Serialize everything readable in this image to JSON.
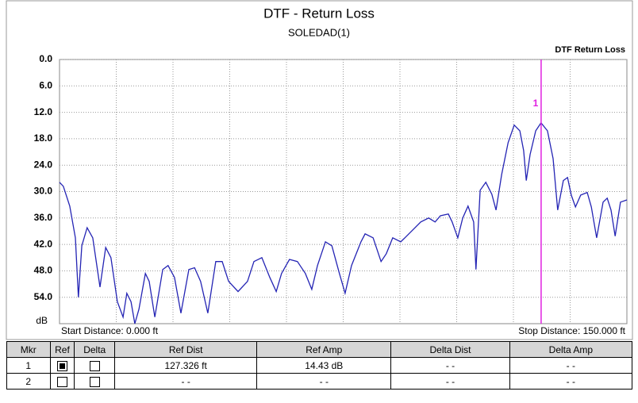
{
  "chart_data": {
    "type": "line",
    "title": "DTF - Return Loss",
    "subtitle": "SOLEDAD(1)",
    "y_label": "dB",
    "start_label": "Start Distance: 0.000 ft",
    "stop_label": "Stop Distance: 150.000 ft",
    "xlim": [
      0,
      150
    ],
    "ylim": [
      60,
      0
    ],
    "inverted_y": true,
    "grid": true,
    "x_divisions": 10,
    "yticks": [
      {
        "value": 0,
        "label": "0.0"
      },
      {
        "value": 6,
        "label": "6.0"
      },
      {
        "value": 12,
        "label": "12.0"
      },
      {
        "value": 18,
        "label": "18.0"
      },
      {
        "value": 24,
        "label": "24.0"
      },
      {
        "value": 30,
        "label": "30.0"
      },
      {
        "value": 36,
        "label": "36.0"
      },
      {
        "value": 42,
        "label": "42.0"
      },
      {
        "value": 48,
        "label": "48.0"
      },
      {
        "value": 54,
        "label": "54.0"
      }
    ],
    "legend": "top-right",
    "series": [
      {
        "name": "DTF Return Loss",
        "color": "#2424b4",
        "x": [
          0,
          1,
          2.7,
          4.2,
          5,
          5.9,
          7.3,
          8.8,
          10.7,
          12.2,
          13.6,
          15.3,
          16.8,
          17.8,
          18.9,
          19.9,
          21,
          22.7,
          23.7,
          25.2,
          27.3,
          28.7,
          30.4,
          32.1,
          34.2,
          35.7,
          37.3,
          39.2,
          41.3,
          43,
          44.7,
          47.2,
          49.7,
          51.4,
          53.5,
          55.6,
          57.3,
          58.7,
          60.8,
          62.9,
          65,
          66.7,
          68.2,
          70.3,
          72,
          74,
          75.5,
          77.2,
          79.7,
          80.8,
          82.9,
          85,
          86.4,
          88.1,
          90.2,
          91.3,
          93.4,
          95.5,
          97.6,
          99.3,
          100.7,
          102.8,
          103.8,
          105.3,
          106.6,
          108,
          109.5,
          110.1,
          111.2,
          112.7,
          114.3,
          115.4,
          116.9,
          118.6,
          120.2,
          121.7,
          122.7,
          123.4,
          124.4,
          125.9,
          127.3,
          129,
          130.5,
          131.7,
          133.2,
          134.3,
          135.3,
          136.4,
          137.8,
          139.5,
          140.6,
          142,
          143.7,
          144.8,
          145.8,
          146.9,
          148.3,
          150
        ],
        "values": [
          27.9,
          28.8,
          33.3,
          40.5,
          54,
          42.3,
          38.2,
          40.5,
          51.7,
          42.7,
          45,
          55,
          58.5,
          53.1,
          55,
          60,
          56.7,
          48.6,
          50.4,
          58.5,
          47.7,
          46.8,
          49.5,
          57.6,
          47.7,
          47.3,
          50.4,
          57.6,
          45.9,
          45.9,
          50.4,
          52.7,
          50.4,
          45.9,
          45,
          49.5,
          52.7,
          48.6,
          45.4,
          45.9,
          48.6,
          52.2,
          46.8,
          41.4,
          42.3,
          48.6,
          53.1,
          46.8,
          41.4,
          39.6,
          40.5,
          45.9,
          44.1,
          40.5,
          41.4,
          40.5,
          38.7,
          36.9,
          36,
          36.9,
          35.5,
          35.1,
          36.9,
          40.5,
          36,
          33.3,
          36.9,
          47.7,
          29.7,
          27.9,
          30.6,
          34.2,
          26.1,
          18.9,
          14.9,
          16.2,
          20.7,
          27.5,
          21.6,
          16.2,
          14.4,
          16.2,
          22.5,
          34.2,
          27.5,
          26.8,
          30.8,
          33.5,
          30.8,
          30.2,
          33.5,
          40.5,
          32.4,
          31.5,
          34.2,
          40.1,
          32.4,
          31.9
        ]
      }
    ],
    "markers": [
      {
        "label": "1",
        "x": 127.326,
        "color": "#e020e0"
      }
    ]
  },
  "table": {
    "columns": [
      "Mkr",
      "Ref",
      "Delta",
      "Ref Dist",
      "Ref Amp",
      "Delta Dist",
      "Delta Amp"
    ],
    "rows": [
      [
        "1",
        true,
        false,
        "127.326 ft",
        "14.43 dB",
        "- -",
        "- -"
      ],
      [
        "2",
        false,
        false,
        "- -",
        "- -",
        "- -",
        "- -"
      ]
    ]
  }
}
